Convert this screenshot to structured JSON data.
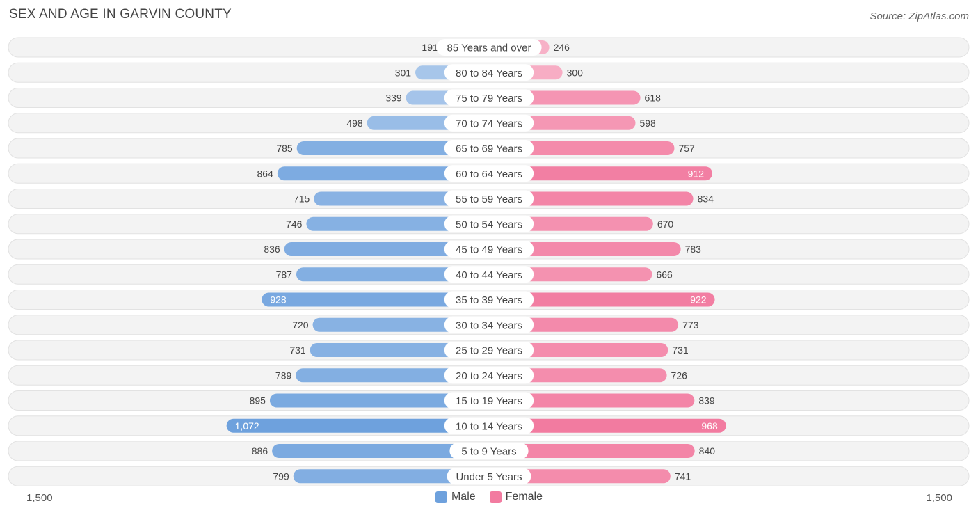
{
  "title": "SEX AND AGE IN GARVIN COUNTY",
  "source": "Source: ZipAtlas.com",
  "colors": {
    "male": "#6ea1dd",
    "female": "#f27ba0",
    "row_bg": "#f1f1f1"
  },
  "chart_data": {
    "type": "bar",
    "orientation": "horizontal-diverging",
    "title": "SEX AND AGE IN GARVIN COUNTY",
    "categories": [
      "85 Years and over",
      "80 to 84 Years",
      "75 to 79 Years",
      "70 to 74 Years",
      "65 to 69 Years",
      "60 to 64 Years",
      "55 to 59 Years",
      "50 to 54 Years",
      "45 to 49 Years",
      "40 to 44 Years",
      "35 to 39 Years",
      "30 to 34 Years",
      "25 to 29 Years",
      "20 to 24 Years",
      "15 to 19 Years",
      "10 to 14 Years",
      "5 to 9 Years",
      "Under 5 Years"
    ],
    "series": [
      {
        "name": "Male",
        "values": [
          191,
          301,
          339,
          498,
          785,
          864,
          715,
          746,
          836,
          787,
          928,
          720,
          731,
          789,
          895,
          1072,
          886,
          799
        ],
        "labels": [
          "191",
          "301",
          "339",
          "498",
          "785",
          "864",
          "715",
          "746",
          "836",
          "787",
          "928",
          "720",
          "731",
          "789",
          "895",
          "1,072",
          "886",
          "799"
        ]
      },
      {
        "name": "Female",
        "values": [
          246,
          300,
          618,
          598,
          757,
          912,
          834,
          670,
          783,
          666,
          922,
          773,
          731,
          726,
          839,
          968,
          840,
          741
        ],
        "labels": [
          "246",
          "300",
          "618",
          "598",
          "757",
          "912",
          "834",
          "670",
          "783",
          "666",
          "922",
          "773",
          "731",
          "726",
          "839",
          "968",
          "840",
          "741"
        ]
      }
    ],
    "xlim": [
      -1500,
      1500
    ],
    "axis_tick_labels": [
      "1,500",
      "1,500"
    ],
    "legend": [
      "Male",
      "Female"
    ],
    "legend_position": "bottom-center"
  }
}
